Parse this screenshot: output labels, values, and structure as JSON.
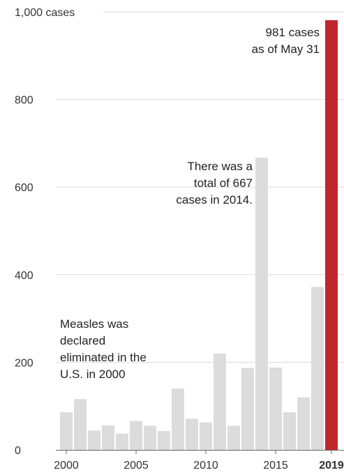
{
  "chart_data": {
    "type": "bar",
    "x": [
      2000,
      2001,
      2002,
      2003,
      2004,
      2005,
      2006,
      2007,
      2008,
      2009,
      2010,
      2011,
      2012,
      2013,
      2014,
      2015,
      2016,
      2017,
      2018,
      2019
    ],
    "values": [
      86,
      116,
      44,
      56,
      37,
      66,
      55,
      43,
      140,
      71,
      63,
      220,
      55,
      187,
      667,
      188,
      86,
      120,
      372,
      981
    ],
    "highlight_year": 2019,
    "highlight_color": "#c0272d",
    "bar_color": "#dcdcdc",
    "ylim": [
      0,
      1000
    ],
    "y_ticks": [
      {
        "value": 0,
        "label": "0"
      },
      {
        "value": 200,
        "label": "200"
      },
      {
        "value": 400,
        "label": "400"
      },
      {
        "value": 600,
        "label": "600"
      },
      {
        "value": 800,
        "label": "800"
      },
      {
        "value": 1000,
        "label": "1,000 cases"
      }
    ],
    "x_ticks": [
      {
        "value": 2000,
        "label": "2000",
        "bold": false
      },
      {
        "value": 2005,
        "label": "2005",
        "bold": false
      },
      {
        "value": 2010,
        "label": "2010",
        "bold": false
      },
      {
        "value": 2015,
        "label": "2015",
        "bold": false
      },
      {
        "value": 2019,
        "label": "2019",
        "bold": true
      }
    ],
    "grid": true,
    "annotations": [
      {
        "year": 2019,
        "align": "right",
        "lines": [
          "981 cases",
          "as of May 31"
        ]
      },
      {
        "year": 2014,
        "align": "right",
        "lines": [
          "There was a",
          "total of 667",
          "cases in 2014."
        ]
      },
      {
        "year": 2000,
        "align": "left",
        "lines": [
          "Measles was",
          "declared",
          "eliminated in the",
          "U.S. in 2000"
        ]
      }
    ]
  }
}
